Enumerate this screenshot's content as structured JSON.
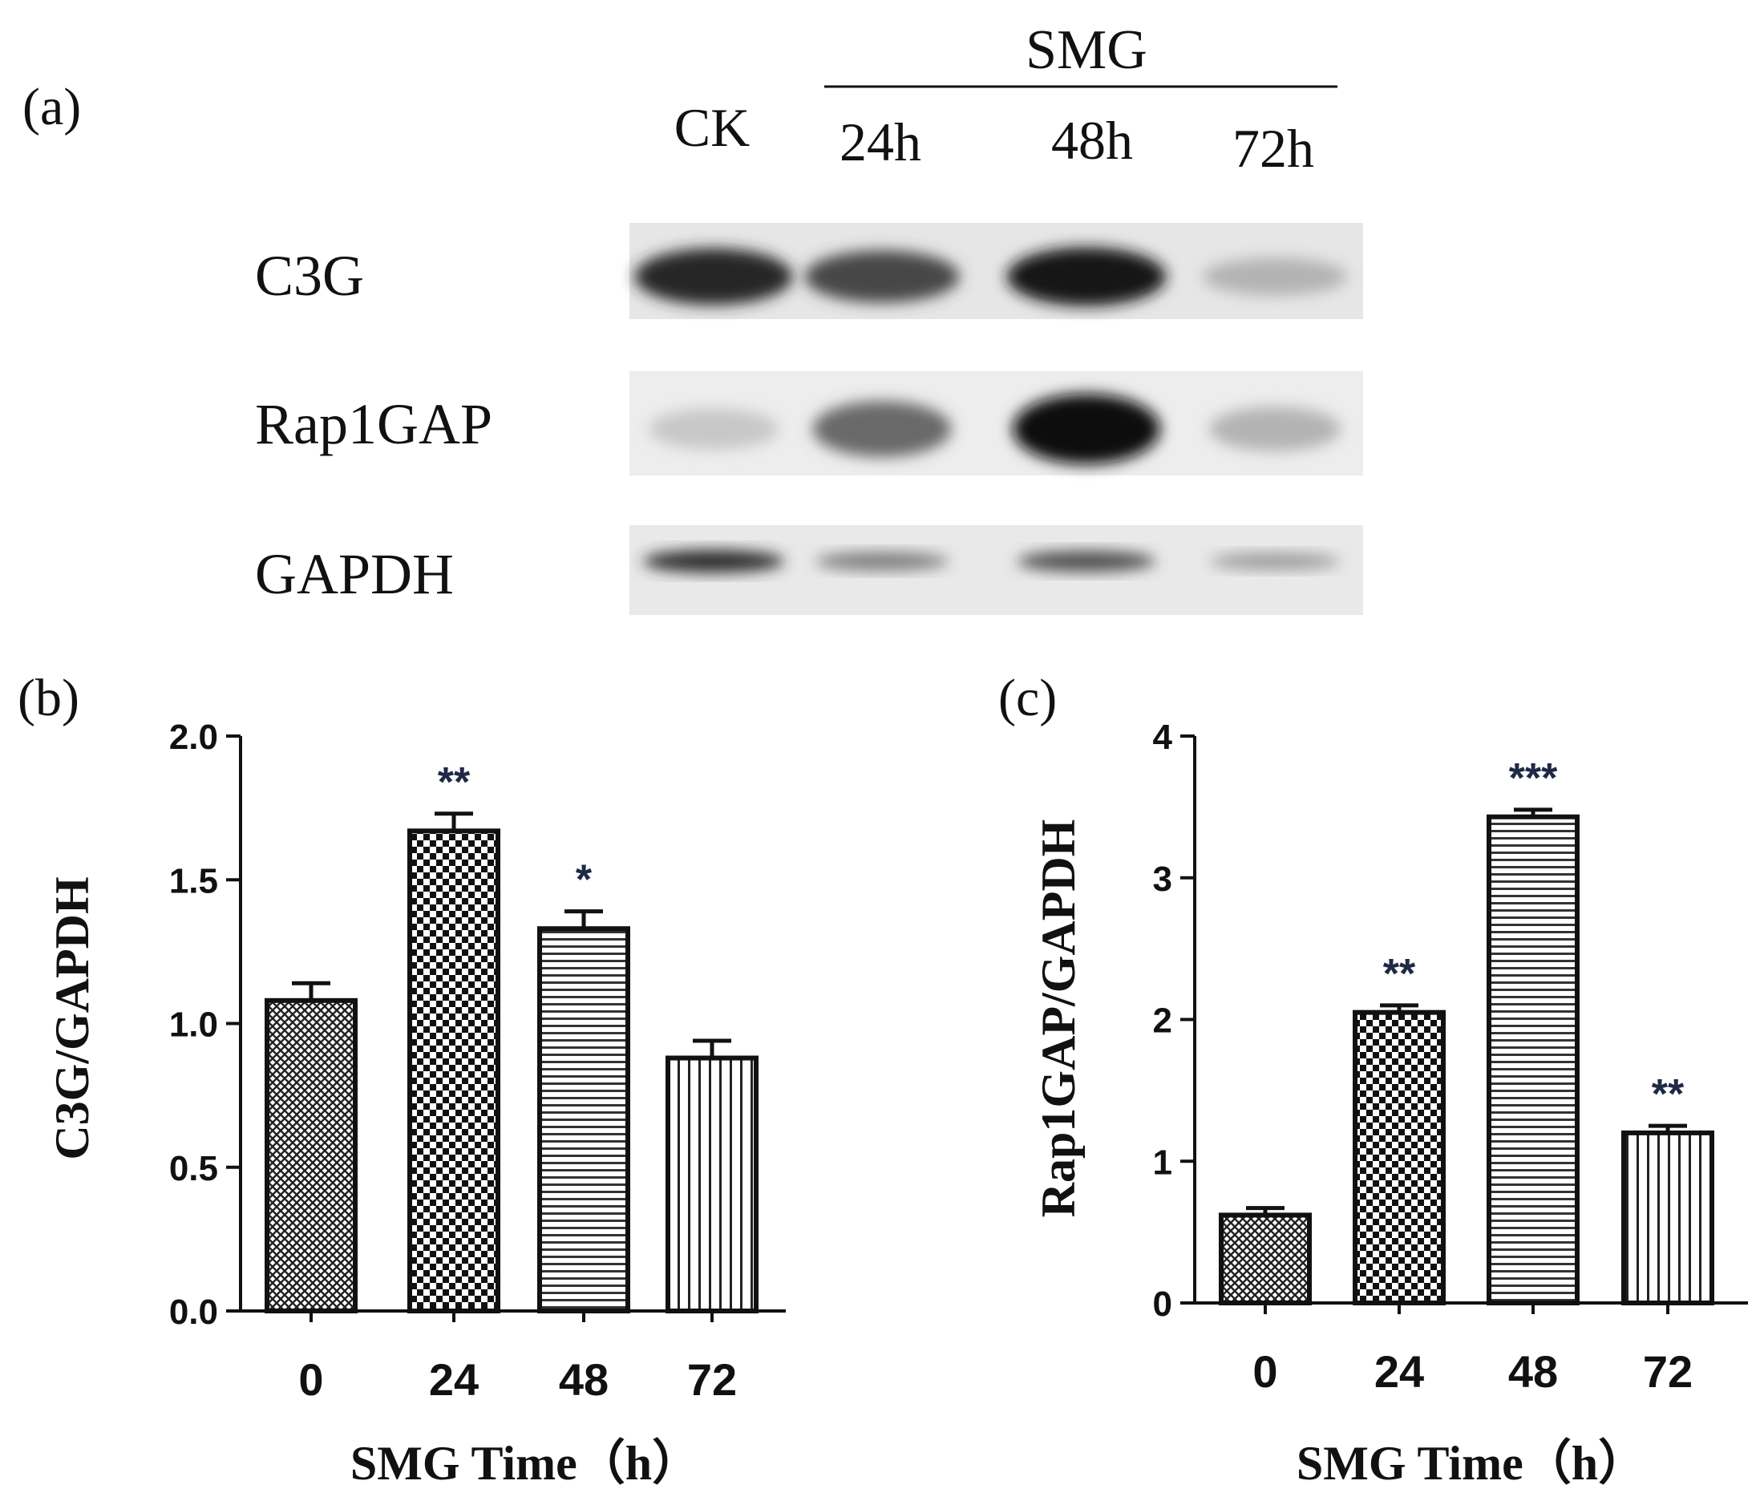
{
  "panel_a": {
    "label": "(a)",
    "group_label": "SMG",
    "lanes": [
      "CK",
      "24h",
      "48h",
      "72h"
    ],
    "rows": [
      {
        "name": "C3G",
        "intensities": [
          0.88,
          0.72,
          0.95,
          0.18
        ]
      },
      {
        "name": "Rap1GAP",
        "intensities": [
          0.08,
          0.55,
          1.0,
          0.18
        ]
      },
      {
        "name": "GAPDH",
        "intensities": [
          0.85,
          0.45,
          0.68,
          0.3
        ]
      }
    ]
  },
  "chart_data": [
    {
      "panel_label": "(b)",
      "type": "bar",
      "categories": [
        "0",
        "24",
        "48",
        "72"
      ],
      "values": [
        1.08,
        1.67,
        1.33,
        0.88
      ],
      "errors": [
        0.06,
        0.06,
        0.06,
        0.06
      ],
      "significance": [
        "",
        "**",
        "*",
        ""
      ],
      "patterns": [
        "crosshatch",
        "checker",
        "horizontal",
        "vertical"
      ],
      "xlabel": "SMG Time（h）",
      "ylabel": "C3G/GAPDH",
      "ylim": [
        0,
        2.0
      ],
      "yticks": [
        "0.0",
        "0.5",
        "1.0",
        "1.5",
        "2.0"
      ]
    },
    {
      "panel_label": "(c)",
      "type": "bar",
      "categories": [
        "0",
        "24",
        "48",
        "72"
      ],
      "values": [
        0.62,
        2.05,
        3.43,
        1.2
      ],
      "errors": [
        0.05,
        0.05,
        0.05,
        0.05
      ],
      "significance": [
        "",
        "**",
        "***",
        "**"
      ],
      "patterns": [
        "crosshatch",
        "checker",
        "horizontal",
        "vertical"
      ],
      "xlabel": "SMG Time（h）",
      "ylabel": "Rap1GAP/GAPDH",
      "ylim": [
        0,
        4
      ],
      "yticks": [
        "0",
        "1",
        "2",
        "3",
        "4"
      ]
    }
  ]
}
